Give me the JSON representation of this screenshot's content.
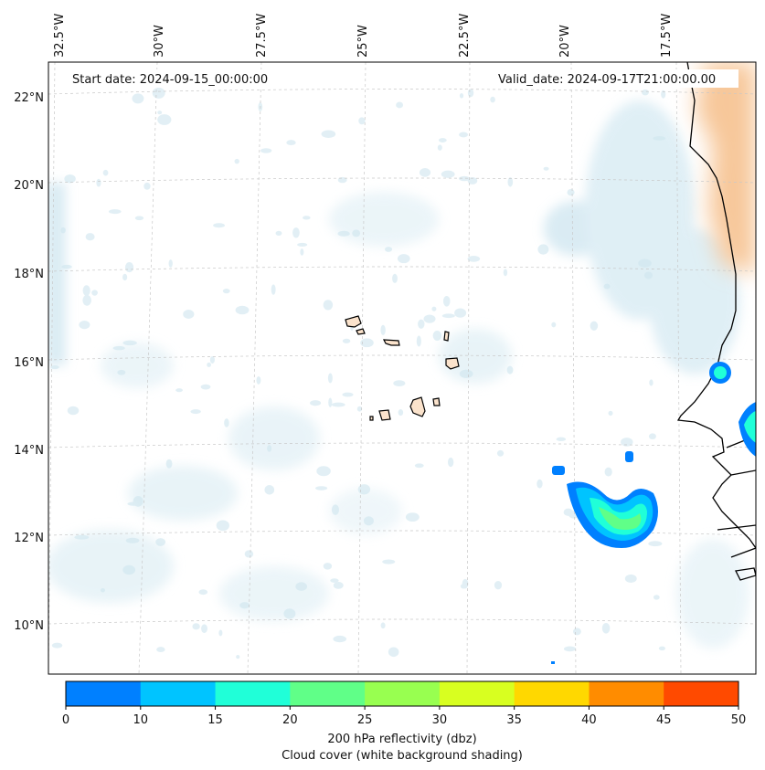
{
  "header": {
    "start_date": "Start date: 2024-09-15_00:00:00",
    "valid_date": "Valid_date: 2024-09-17T21:00:00.00"
  },
  "longitude_ticks": [
    "32.5°W",
    "30°W",
    "27.5°W",
    "25°W",
    "22.5°W",
    "20°W",
    "17.5°W"
  ],
  "latitude_ticks": [
    "22°N",
    "20°N",
    "18°N",
    "16°N",
    "14°N",
    "12°N",
    "10°N"
  ],
  "colorbar": {
    "ticks": [
      "0",
      "10",
      "15",
      "20",
      "25",
      "30",
      "35",
      "40",
      "45",
      "50"
    ],
    "colors": [
      "#0080ff",
      "#00c4ff",
      "#20ffd8",
      "#60ff88",
      "#98ff50",
      "#d8ff20",
      "#ffd800",
      "#ff8c00",
      "#ff4a00"
    ],
    "label_line1": "200 hPa reflectivity (dbz)",
    "label_line2": "Cloud cover (white background shading)"
  },
  "map_colors": {
    "cloud": "#cfe6ef",
    "land_warm": "#f7c79a",
    "coast": "#000000",
    "grid": "#c8c8c8"
  }
}
